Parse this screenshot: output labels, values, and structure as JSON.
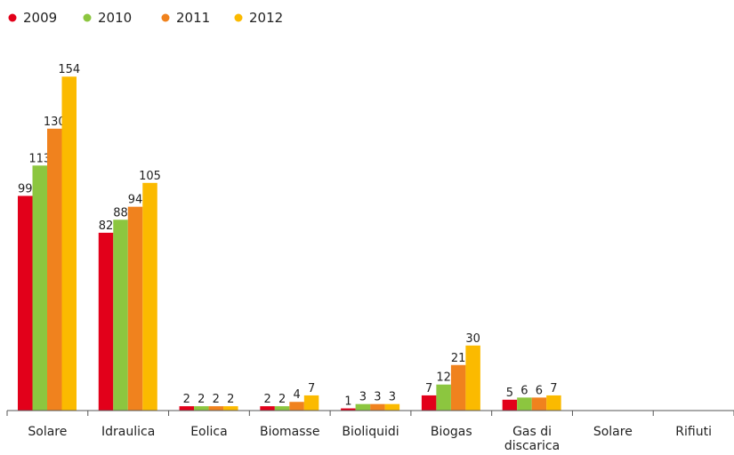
{
  "chart_data": {
    "type": "bar",
    "categories": [
      "Solare",
      "Idraulica",
      "Eolica",
      "Biomasse",
      "Bioliquidi",
      "Biogas",
      "Gas di discarica",
      "Solare",
      "Rifiuti"
    ],
    "series": [
      {
        "name": "2009",
        "color": "#e2001a",
        "values": [
          99,
          82,
          2,
          2,
          1,
          7,
          5,
          null,
          null
        ]
      },
      {
        "name": "2010",
        "color": "#8cc63f",
        "values": [
          113,
          88,
          2,
          2,
          3,
          12,
          6,
          null,
          null
        ]
      },
      {
        "name": "2011",
        "color": "#f0821e",
        "values": [
          130,
          94,
          2,
          4,
          3,
          21,
          6,
          null,
          null
        ]
      },
      {
        "name": "2012",
        "color": "#fbba00",
        "values": [
          154,
          105,
          2,
          7,
          3,
          30,
          7,
          null,
          null
        ]
      }
    ],
    "legend": "top-left"
  }
}
